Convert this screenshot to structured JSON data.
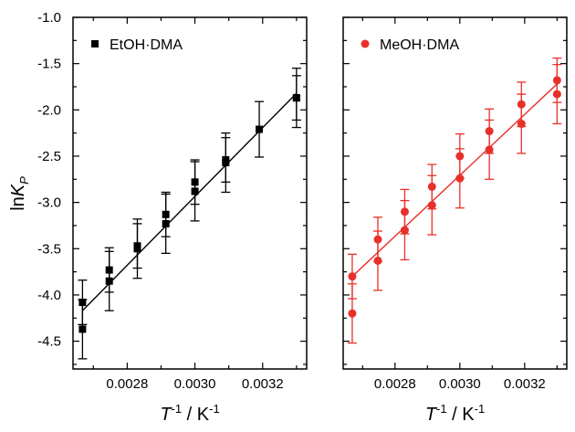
{
  "chart_data": {
    "type": "scatter",
    "ylabel": {
      "prefix": "ln",
      "main": "K",
      "sub": "P"
    },
    "xlabel": {
      "main": "T",
      "sup": "-1",
      "mid": " / K",
      "sup2": "-1"
    },
    "ylim": [
      -4.8,
      -1.0
    ],
    "xlim": [
      0.00264,
      0.00333
    ],
    "yticks": [
      -1.0,
      -1.5,
      -2.0,
      -2.5,
      -3.0,
      -3.5,
      -4.0,
      -4.5
    ],
    "ytick_labels": [
      "-1.0",
      "-1.5",
      "-2.0",
      "-2.5",
      "-3.0",
      "-3.5",
      "-4.0",
      "-4.5"
    ],
    "xticks": [
      0.0028,
      0.003,
      0.0032
    ],
    "xtick_labels": [
      "0.0028",
      "0.0030",
      "0.0032"
    ],
    "panels": [
      {
        "name": "EtOH·DMA",
        "color": "#000000",
        "marker": "square",
        "points": [
          {
            "x": 0.002668,
            "y": -4.08,
            "err": 0.24
          },
          {
            "x": 0.002668,
            "y": -4.37,
            "err": 0.32
          },
          {
            "x": 0.002747,
            "y": -3.73,
            "err": 0.24
          },
          {
            "x": 0.002747,
            "y": -3.85,
            "err": 0.32
          },
          {
            "x": 0.00283,
            "y": -3.47,
            "err": 0.24
          },
          {
            "x": 0.00283,
            "y": -3.5,
            "err": 0.32
          },
          {
            "x": 0.002914,
            "y": -3.13,
            "err": 0.24
          },
          {
            "x": 0.002914,
            "y": -3.23,
            "err": 0.32
          },
          {
            "x": 0.003,
            "y": -2.78,
            "err": 0.24
          },
          {
            "x": 0.003,
            "y": -2.88,
            "err": 0.32
          },
          {
            "x": 0.003091,
            "y": -2.54,
            "err": 0.24
          },
          {
            "x": 0.003091,
            "y": -2.57,
            "err": 0.32
          },
          {
            "x": 0.00319,
            "y": -2.21,
            "err": 0.3
          },
          {
            "x": 0.0033,
            "y": -1.87,
            "err": 0.24
          },
          {
            "x": 0.0033,
            "y": -1.87,
            "err": 0.32
          }
        ],
        "fit": {
          "x": [
            0.002668,
            0.0033
          ],
          "y": [
            -4.17,
            -1.82
          ]
        }
      },
      {
        "name": "MeOH·DMA",
        "color": "#e8302a",
        "marker": "circle",
        "points": [
          {
            "x": 0.002668,
            "y": -3.8,
            "err": 0.24
          },
          {
            "x": 0.002668,
            "y": -4.2,
            "err": 0.32
          },
          {
            "x": 0.002747,
            "y": -3.4,
            "err": 0.24
          },
          {
            "x": 0.002747,
            "y": -3.63,
            "err": 0.32
          },
          {
            "x": 0.00283,
            "y": -3.1,
            "err": 0.24
          },
          {
            "x": 0.00283,
            "y": -3.3,
            "err": 0.32
          },
          {
            "x": 0.002914,
            "y": -2.83,
            "err": 0.24
          },
          {
            "x": 0.002914,
            "y": -3.03,
            "err": 0.32
          },
          {
            "x": 0.003,
            "y": -2.5,
            "err": 0.24
          },
          {
            "x": 0.003,
            "y": -2.74,
            "err": 0.32
          },
          {
            "x": 0.003091,
            "y": -2.23,
            "err": 0.24
          },
          {
            "x": 0.003091,
            "y": -2.43,
            "err": 0.32
          },
          {
            "x": 0.00319,
            "y": -1.94,
            "err": 0.24
          },
          {
            "x": 0.00319,
            "y": -2.15,
            "err": 0.32
          },
          {
            "x": 0.0033,
            "y": -1.68,
            "err": 0.24
          },
          {
            "x": 0.0033,
            "y": -1.83,
            "err": 0.32
          }
        ],
        "fit": {
          "x": [
            0.002668,
            0.0033
          ],
          "y": [
            -3.8,
            -1.72
          ]
        }
      }
    ]
  }
}
